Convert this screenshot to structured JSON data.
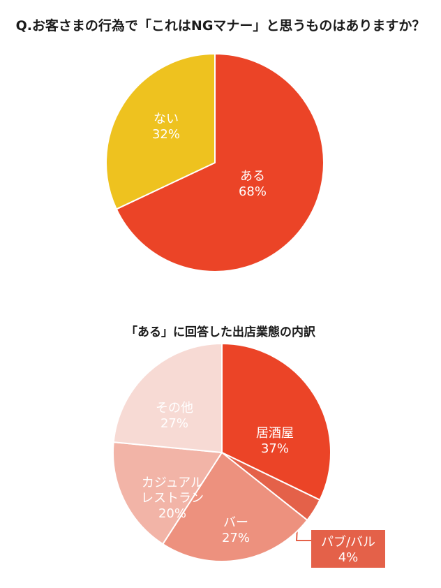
{
  "chart_data": [
    {
      "type": "pie",
      "title": "Q.お客さまの行為で「これはNGマナー」と思うものはありますか？",
      "categories": [
        "ある",
        "ない"
      ],
      "values": [
        68,
        32
      ],
      "value_labels": [
        "68%",
        "32%"
      ],
      "colors": [
        "#eb4427",
        "#eec21f"
      ],
      "label_colors": [
        "#ffffff",
        "#ffffff"
      ]
    },
    {
      "type": "pie",
      "title": "「ある」に回答した出店業態の内訳",
      "categories": [
        "居酒屋",
        "パブ/バル",
        "バー",
        "カジュアル\nレストラン",
        "その他"
      ],
      "values": [
        37,
        4,
        27,
        20,
        27
      ],
      "value_labels": [
        "37%",
        "4%",
        "27%",
        "20%",
        "27%"
      ],
      "colors": [
        "#eb4427",
        "#e46149",
        "#ed917e",
        "#f2b4a7",
        "#f7dad4"
      ],
      "label_colors": [
        "#ffffff",
        "#ffffff",
        "#ffffff",
        "#ffffff",
        "#ffffff"
      ]
    }
  ]
}
